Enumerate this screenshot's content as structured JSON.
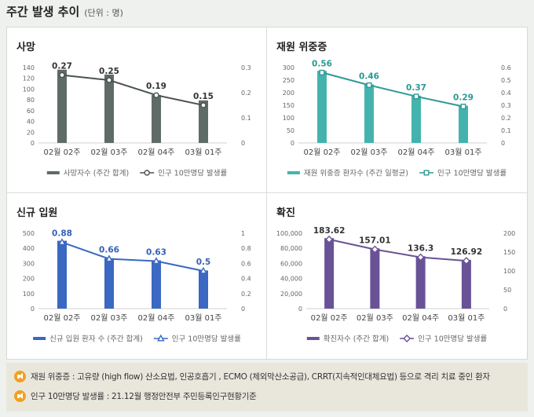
{
  "header": {
    "title": "주간 발생 추이",
    "unit": "(단위 : 명)"
  },
  "chart_data": [
    {
      "type": "bar",
      "title": "사망",
      "categories": [
        "02월 02주",
        "02월 03주",
        "02월 04주",
        "03월 01주"
      ],
      "series": [
        {
          "name": "사망자수 (주간 합계)",
          "type": "bar",
          "axis": "left",
          "values": [
            136,
            127,
            89,
            79
          ]
        },
        {
          "name": "인구 10만명당 발생률",
          "type": "line",
          "axis": "right",
          "values": [
            0.27,
            0.25,
            0.19,
            0.15
          ],
          "labels": [
            "0.27",
            "0.25",
            "0.19",
            "0.15"
          ]
        }
      ],
      "ylim_left": [
        0,
        140
      ],
      "yticks_left": [
        "0",
        "20",
        "40",
        "60",
        "80",
        "100",
        "120",
        "140"
      ],
      "ylim_right": [
        0,
        0.3
      ],
      "yticks_right": [
        "0",
        "0.1",
        "0.2",
        "0.3"
      ],
      "bar_color": "#5f6b66",
      "line_color": "#4a5350",
      "label_color": "#333333",
      "marker": "circle",
      "legend": "bottom"
    },
    {
      "type": "bar",
      "title": "재원 위중증",
      "categories": [
        "02월 02주",
        "02월 03주",
        "02월 04주",
        "03월 01주"
      ],
      "series": [
        {
          "name": "재원 위중증 환자수 (주간 일평균)",
          "type": "bar",
          "axis": "left",
          "values": [
            287,
            233,
            188,
            148
          ]
        },
        {
          "name": "인구 10만명당 발생률",
          "type": "line",
          "axis": "right",
          "values": [
            0.56,
            0.46,
            0.37,
            0.29
          ],
          "labels": [
            "0.56",
            "0.46",
            "0.37",
            "0.29"
          ]
        }
      ],
      "ylim_left": [
        0,
        300
      ],
      "yticks_left": [
        "0",
        "50",
        "100",
        "150",
        "200",
        "250",
        "300"
      ],
      "ylim_right": [
        0,
        0.6
      ],
      "yticks_right": [
        "0",
        "0.1",
        "0.2",
        "0.3",
        "0.4",
        "0.5",
        "0.6"
      ],
      "bar_color": "#45b3ad",
      "line_color": "#2f9a95",
      "label_color": "#2a9891",
      "marker": "square",
      "legend": "bottom"
    },
    {
      "type": "bar",
      "title": "신규 입원",
      "categories": [
        "02월 02주",
        "02월 03주",
        "02월 04주",
        "03월 01주"
      ],
      "series": [
        {
          "name": "신규 입원 환자 수 (주간 합계)",
          "type": "bar",
          "axis": "left",
          "values": [
            450,
            333,
            320,
            253
          ]
        },
        {
          "name": "인구 10만명당 발생률",
          "type": "line",
          "axis": "right",
          "values": [
            0.88,
            0.66,
            0.63,
            0.5
          ],
          "labels": [
            "0.88",
            "0.66",
            "0.63",
            "0.5"
          ]
        }
      ],
      "ylim_left": [
        0,
        500
      ],
      "yticks_left": [
        "0",
        "100",
        "200",
        "300",
        "400",
        "500"
      ],
      "ylim_right": [
        0,
        1
      ],
      "yticks_right": [
        "0",
        "0.2",
        "0.4",
        "0.6",
        "0.8",
        "1"
      ],
      "bar_color": "#3a68c2",
      "line_color": "#3a68c2",
      "label_color": "#3560b8",
      "marker": "triangle",
      "legend": "bottom"
    },
    {
      "type": "bar",
      "title": "확진",
      "categories": [
        "02월 02주",
        "02월 03주",
        "02월 04주",
        "03월 01주"
      ],
      "series": [
        {
          "name": "확진자수 (주간 합계)",
          "type": "bar",
          "axis": "left",
          "values": [
            93500,
            80000,
            69500,
            64700
          ]
        },
        {
          "name": "인구 10만명당 발생률",
          "type": "line",
          "axis": "right",
          "values": [
            183.62,
            157.01,
            136.3,
            126.92
          ],
          "labels": [
            "183.62",
            "157.01",
            "136.3",
            "126.92"
          ]
        }
      ],
      "ylim_left": [
        0,
        100000
      ],
      "yticks_left": [
        "0",
        "20,000",
        "40,000",
        "60,000",
        "80,000",
        "100,000"
      ],
      "ylim_right": [
        0,
        200
      ],
      "yticks_right": [
        "0",
        "50",
        "100",
        "150",
        "200"
      ],
      "bar_color": "#6a5296",
      "line_color": "#6a5296",
      "label_color": "#333333",
      "marker": "diamond",
      "legend": "bottom"
    }
  ],
  "notes": [
    {
      "text": "재원 위중증 : 고유량 (high flow) 산소요법, 인공호흡기 , ECMO (체외막산소공급), CRRT(지속적인대체요법) 등으로 격리 치료 중인 환자",
      "icon": "speaker-icon",
      "icon_color": "#f0a020"
    },
    {
      "text": "인구 10만명당 발생률 : 21.12월 행정안전부 주민등록인구현황기준",
      "icon": "speaker-icon",
      "icon_color": "#f0a020"
    }
  ]
}
